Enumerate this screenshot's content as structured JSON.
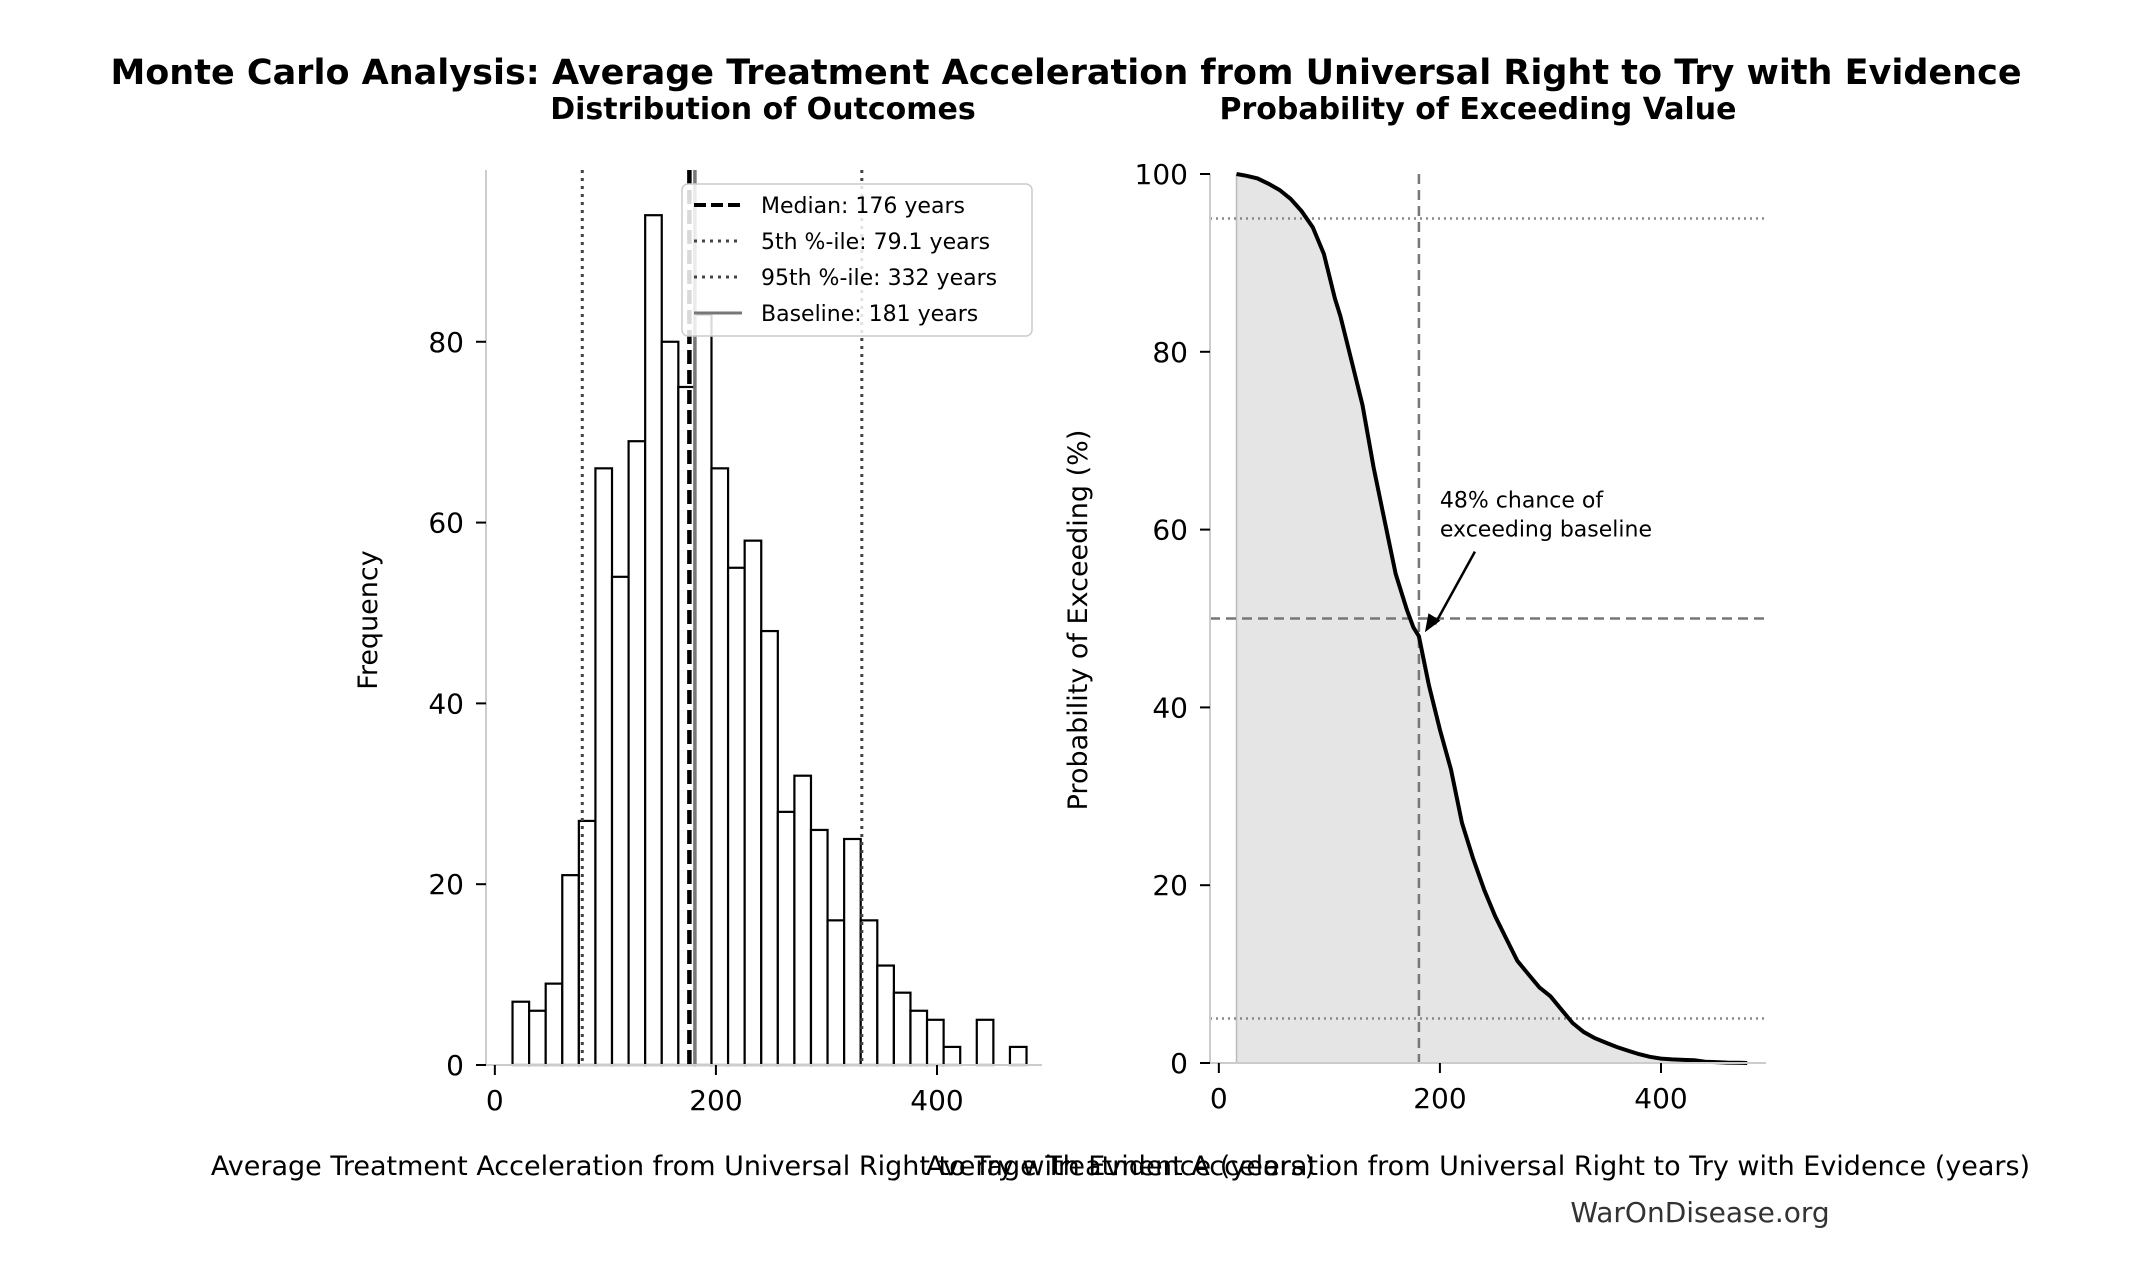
{
  "figure": {
    "title": "Monte Carlo Analysis: Average Treatment Acceleration from Universal Right to Try with Evidence",
    "watermark": "WarOnDisease.org"
  },
  "chart_data": [
    {
      "type": "bar",
      "subtitle": "Distribution of Outcomes",
      "xlabel": "Average Treatment Acceleration from Universal Right to Try with Evidence (years)",
      "ylabel": "Frequency",
      "xlim": [
        -8,
        495
      ],
      "ylim": [
        0,
        99
      ],
      "xticks": [
        0,
        200,
        400
      ],
      "yticks": [
        0,
        20,
        40,
        60,
        80
      ],
      "bin_width": 15,
      "bins": [
        {
          "x0": 16,
          "count": 7
        },
        {
          "x0": 31,
          "count": 6
        },
        {
          "x0": 46,
          "count": 9
        },
        {
          "x0": 61,
          "count": 21
        },
        {
          "x0": 76,
          "count": 27
        },
        {
          "x0": 91,
          "count": 66
        },
        {
          "x0": 106,
          "count": 54
        },
        {
          "x0": 121,
          "count": 69
        },
        {
          "x0": 136,
          "count": 94
        },
        {
          "x0": 151,
          "count": 80
        },
        {
          "x0": 166,
          "count": 75
        },
        {
          "x0": 181,
          "count": 83
        },
        {
          "x0": 196,
          "count": 66
        },
        {
          "x0": 211,
          "count": 55
        },
        {
          "x0": 226,
          "count": 58
        },
        {
          "x0": 241,
          "count": 48
        },
        {
          "x0": 256,
          "count": 28
        },
        {
          "x0": 271,
          "count": 32
        },
        {
          "x0": 286,
          "count": 26
        },
        {
          "x0": 301,
          "count": 16
        },
        {
          "x0": 316,
          "count": 25
        },
        {
          "x0": 331,
          "count": 16
        },
        {
          "x0": 346,
          "count": 11
        },
        {
          "x0": 361,
          "count": 8
        },
        {
          "x0": 376,
          "count": 6
        },
        {
          "x0": 391,
          "count": 5
        },
        {
          "x0": 406,
          "count": 2
        },
        {
          "x0": 421,
          "count": 0
        },
        {
          "x0": 436,
          "count": 5
        },
        {
          "x0": 451,
          "count": 0
        },
        {
          "x0": 466,
          "count": 2
        }
      ],
      "reference_lines": [
        {
          "value": 176,
          "style": "dashed",
          "label": "Median: 176 years"
        },
        {
          "value": 79.1,
          "style": "dotted",
          "label": "5th %-ile: 79.1 years"
        },
        {
          "value": 332,
          "style": "dotted",
          "label": "95th %-ile: 332 years"
        },
        {
          "value": 181,
          "style": "solid",
          "label": "Baseline: 181 years"
        }
      ],
      "legend_position": "top-right",
      "grid": false
    },
    {
      "type": "line",
      "subtitle": "Probability of Exceeding Value",
      "xlabel": "Average Treatment Acceleration from Universal Right to Try with Evidence (years)",
      "ylabel": "Probability of Exceeding (%)",
      "xlim": [
        -8,
        495
      ],
      "ylim": [
        0,
        100
      ],
      "xticks": [
        0,
        200,
        400
      ],
      "yticks": [
        0,
        20,
        40,
        60,
        80,
        100
      ],
      "series": [
        {
          "x": [
            16,
            25,
            35,
            45,
            55,
            65,
            75,
            85,
            95,
            100,
            105,
            110,
            120,
            130,
            140,
            150,
            160,
            170,
            176,
            181,
            190,
            200,
            210,
            220,
            230,
            240,
            250,
            260,
            270,
            280,
            290,
            300,
            310,
            320,
            330,
            340,
            350,
            360,
            370,
            380,
            390,
            400,
            410,
            420,
            430,
            440,
            450,
            460,
            470,
            478
          ],
          "y": [
            100,
            99.8,
            99.5,
            98.9,
            98.2,
            97.2,
            95.8,
            94,
            91,
            88.5,
            86,
            84,
            79,
            74,
            67,
            61,
            55,
            51,
            49,
            48,
            42.5,
            37.5,
            33,
            27,
            23,
            19.5,
            16.5,
            14,
            11.5,
            10,
            8.5,
            7.5,
            6,
            4.5,
            3.5,
            2.8,
            2.3,
            1.8,
            1.4,
            1,
            0.7,
            0.5,
            0.4,
            0.35,
            0.3,
            0.15,
            0.1,
            0.05,
            0.02,
            0
          ]
        }
      ],
      "fill_under_curve": true,
      "reference_lines": [
        {
          "axis": "x",
          "value": 181,
          "style": "dashed"
        },
        {
          "axis": "y",
          "value": 50,
          "style": "dashed"
        },
        {
          "axis": "y",
          "value": 95,
          "style": "dotted"
        },
        {
          "axis": "y",
          "value": 5,
          "style": "dotted"
        }
      ],
      "annotation": {
        "text_line1": "48% chance of",
        "text_line2": "exceeding baseline",
        "point": {
          "x": 181,
          "y": 48
        },
        "text_at": {
          "x": 200,
          "y": 60
        }
      },
      "grid": false
    }
  ]
}
